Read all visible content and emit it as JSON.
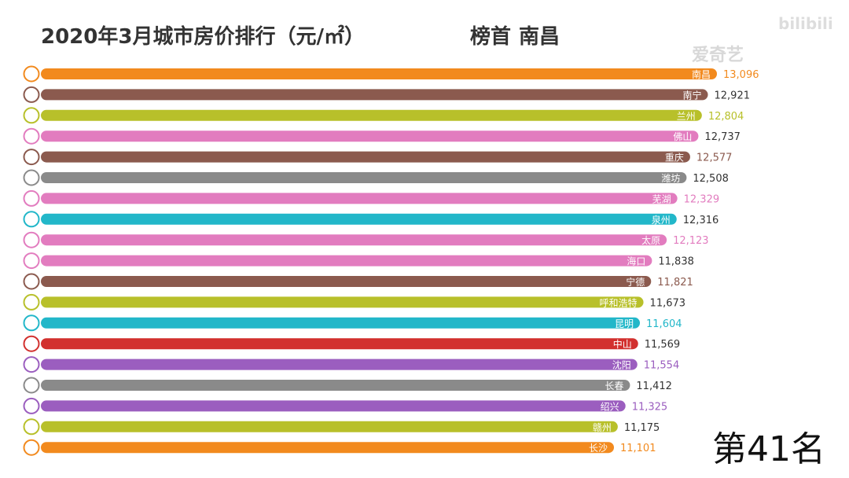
{
  "header": {
    "title": "2020年3月城市房价排行（元/㎡）",
    "leader_prefix": "榜首",
    "leader_city": "南昌"
  },
  "rank_label": "第41名",
  "watermark": {
    "brand": "爱奇艺",
    "site": "bilibili"
  },
  "chart_data": {
    "type": "bar",
    "orientation": "horizontal",
    "title": "2020年3月城市房价排行（元/㎡）",
    "xlabel": "",
    "ylabel": "",
    "xlim": [
      0,
      13000
    ],
    "grid": false,
    "legend": "none",
    "categories": [
      "南昌",
      "南宁",
      "兰州",
      "佛山",
      "重庆",
      "潍坊",
      "芜湖",
      "泉州",
      "太原",
      "海口",
      "宁德",
      "呼和浩特",
      "昆明",
      "中山",
      "沈阳",
      "长春",
      "绍兴",
      "赣州",
      "长沙"
    ],
    "values": [
      13096,
      12921,
      12804,
      12737,
      12577,
      12508,
      12329,
      12316,
      12123,
      11838,
      11821,
      11673,
      11604,
      11569,
      11554,
      11412,
      11325,
      11175,
      11101
    ],
    "value_labels": [
      "13,096",
      "12,921",
      "12,804",
      "12,737",
      "12,577",
      "12,508",
      "12,329",
      "12,316",
      "12,123",
      "11,838",
      "11,821",
      "11,673",
      "11,604",
      "11,569",
      "11,554",
      "11,412",
      "11,325",
      "11,175",
      "11,101"
    ],
    "colors": [
      "#f28a1e",
      "#8b5a4e",
      "#b8c02a",
      "#e27cbf",
      "#8b5a4e",
      "#8a8a8a",
      "#e27cbf",
      "#22b7c9",
      "#e27cbf",
      "#e27cbf",
      "#8b5a4e",
      "#b8c02a",
      "#22b7c9",
      "#d2302e",
      "#9b5ebf",
      "#8a8a8a",
      "#9b5ebf",
      "#b8c02a",
      "#f28a1e"
    ]
  }
}
